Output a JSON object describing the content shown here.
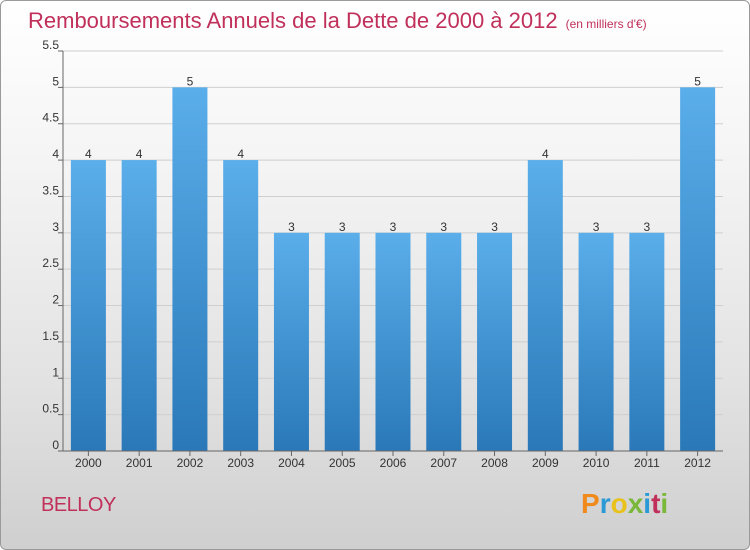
{
  "colors": {
    "title": "#c0305a",
    "bar_top": "#5aaeea",
    "bar_bottom": "#2a78b8",
    "axis": "#666666",
    "grid": "#cfcfcf",
    "logo": [
      "#f08a1c",
      "#2a9ad6",
      "#e8c21a",
      "#7ab83a",
      "#2a9ad6",
      "#c0305a",
      "#7ab83a"
    ]
  },
  "logo_text": "Proxiti",
  "commune": "BELLOY",
  "chart_data": {
    "type": "bar",
    "title": "Remboursements Annuels de la Dette de 2000 à 2012",
    "subtitle": "(en milliers d'€)",
    "categories": [
      "2000",
      "2001",
      "2002",
      "2003",
      "2004",
      "2005",
      "2006",
      "2007",
      "2008",
      "2009",
      "2010",
      "2011",
      "2012"
    ],
    "values": [
      4,
      4,
      5,
      4,
      3,
      3,
      3,
      3,
      3,
      4,
      3,
      3,
      5
    ],
    "data_labels": [
      "4",
      "4",
      "5",
      "4",
      "3",
      "3",
      "3",
      "3",
      "3",
      "4",
      "3",
      "3",
      "5"
    ],
    "yticks": [
      "0",
      "0.5",
      "1",
      "1.5",
      "2",
      "2.5",
      "3",
      "3.5",
      "4",
      "4.5",
      "5",
      "5.5"
    ],
    "ylim": [
      0,
      5.5
    ],
    "xlabel": "",
    "ylabel": "",
    "grid": true
  }
}
